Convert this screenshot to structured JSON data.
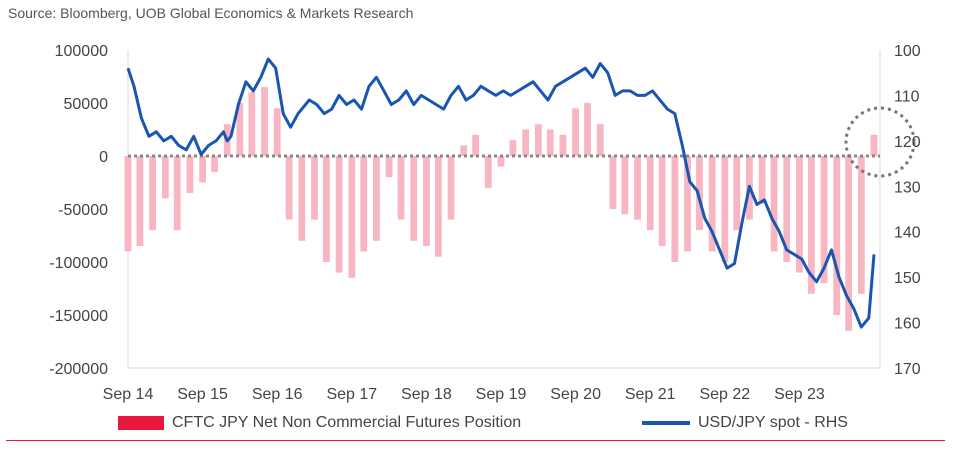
{
  "source": "Source: Bloomberg, UOB Global Economics & Markets Research",
  "colors": {
    "bars": "#f7b6c2",
    "line": "#1a56b0",
    "zero_line": "#888888",
    "legend_bar": "#e8173c",
    "rule": "#e8173c"
  },
  "chart_data": {
    "type": "bar+line",
    "title": "",
    "x_labels": [
      "Sep 14",
      "Sep 15",
      "Sep 16",
      "Sep 17",
      "Sep 18",
      "Sep 19",
      "Sep 20",
      "Sep 21",
      "Sep 22",
      "Sep 23"
    ],
    "y_left": {
      "ticks": [
        100000,
        50000,
        0,
        -50000,
        -100000,
        -150000,
        -200000
      ],
      "range": [
        -200000,
        100000
      ]
    },
    "y_right": {
      "ticks": [
        100,
        110,
        120,
        130,
        140,
        150,
        160,
        170
      ],
      "range": [
        100,
        170
      ],
      "inverted": true
    },
    "series": [
      {
        "name": "CFTC JPY Net Non Commercial Futures Position",
        "type": "bar",
        "axis": "left",
        "x": [
          2014.67,
          2014.83,
          2015.0,
          2015.17,
          2015.33,
          2015.5,
          2015.67,
          2015.83,
          2016.0,
          2016.17,
          2016.33,
          2016.5,
          2016.67,
          2016.83,
          2017.0,
          2017.17,
          2017.33,
          2017.5,
          2017.67,
          2017.83,
          2018.0,
          2018.17,
          2018.33,
          2018.5,
          2018.67,
          2018.83,
          2019.0,
          2019.17,
          2019.33,
          2019.5,
          2019.67,
          2019.83,
          2020.0,
          2020.17,
          2020.33,
          2020.5,
          2020.67,
          2020.83,
          2021.0,
          2021.17,
          2021.33,
          2021.5,
          2021.67,
          2021.83,
          2022.0,
          2022.17,
          2022.33,
          2022.5,
          2022.67,
          2022.83,
          2023.0,
          2023.17,
          2023.33,
          2023.5,
          2023.67,
          2023.83,
          2024.0,
          2024.17,
          2024.33,
          2024.5,
          2024.67
        ],
        "values": [
          -90000,
          -85000,
          -70000,
          -40000,
          -70000,
          -35000,
          -25000,
          -15000,
          30000,
          50000,
          60000,
          65000,
          45000,
          -60000,
          -80000,
          -60000,
          -100000,
          -110000,
          -115000,
          -90000,
          -80000,
          -20000,
          -60000,
          -80000,
          -85000,
          -95000,
          -60000,
          10000,
          20000,
          -30000,
          -10000,
          15000,
          25000,
          30000,
          25000,
          20000,
          45000,
          50000,
          30000,
          -50000,
          -55000,
          -60000,
          -70000,
          -85000,
          -100000,
          -90000,
          -70000,
          -90000,
          -100000,
          -70000,
          -60000,
          -45000,
          -90000,
          -100000,
          -110000,
          -130000,
          -120000,
          -150000,
          -165000,
          -130000,
          20000
        ]
      },
      {
        "name": "USD/JPY spot - RHS",
        "type": "line",
        "axis": "right",
        "x": [
          2014.67,
          2014.75,
          2014.85,
          2014.95,
          2015.05,
          2015.15,
          2015.25,
          2015.35,
          2015.45,
          2015.55,
          2015.65,
          2015.75,
          2015.85,
          2015.95,
          2016.0,
          2016.05,
          2016.15,
          2016.25,
          2016.35,
          2016.45,
          2016.55,
          2016.65,
          2016.75,
          2016.85,
          2016.95,
          2017.0,
          2017.1,
          2017.2,
          2017.3,
          2017.4,
          2017.5,
          2017.6,
          2017.7,
          2017.8,
          2017.9,
          2018.0,
          2018.1,
          2018.2,
          2018.3,
          2018.4,
          2018.5,
          2018.6,
          2018.7,
          2018.8,
          2018.9,
          2019.0,
          2019.1,
          2019.2,
          2019.3,
          2019.4,
          2019.5,
          2019.6,
          2019.7,
          2019.8,
          2019.9,
          2020.0,
          2020.1,
          2020.2,
          2020.3,
          2020.4,
          2020.5,
          2020.6,
          2020.7,
          2020.8,
          2020.9,
          2021.0,
          2021.1,
          2021.2,
          2021.3,
          2021.4,
          2021.5,
          2021.6,
          2021.7,
          2021.8,
          2021.9,
          2022.0,
          2022.1,
          2022.2,
          2022.3,
          2022.4,
          2022.5,
          2022.6,
          2022.7,
          2022.8,
          2022.9,
          2023.0,
          2023.1,
          2023.2,
          2023.3,
          2023.4,
          2023.5,
          2023.6,
          2023.7,
          2023.8,
          2023.9,
          2024.0,
          2024.1,
          2024.2,
          2024.3,
          2024.4,
          2024.5,
          2024.6,
          2024.67
        ],
        "values": [
          104,
          108,
          115,
          119,
          118,
          120,
          119,
          121,
          122,
          119,
          123,
          121,
          120,
          118,
          120,
          119,
          112,
          107,
          109,
          106,
          102,
          104,
          114,
          117,
          114,
          113,
          111,
          112,
          114,
          113,
          110,
          112,
          111,
          113,
          108,
          106,
          109,
          112,
          111,
          109,
          112,
          110,
          111,
          112,
          113,
          110,
          108,
          111,
          110,
          108,
          109,
          110,
          109,
          110,
          109,
          108,
          107,
          109,
          111,
          108,
          107,
          106,
          105,
          104,
          106,
          103,
          105,
          110,
          109,
          109,
          110,
          110,
          109,
          111,
          113,
          114,
          121,
          129,
          131,
          137,
          140,
          144,
          148,
          147,
          138,
          130,
          134,
          133,
          137,
          140,
          144,
          145,
          146,
          149,
          151,
          148,
          144,
          150,
          154,
          157,
          161,
          159,
          145
        ]
      }
    ],
    "legend_placement": "bottom",
    "annotation": "dashed circle around the latest bar near zero line"
  },
  "legend": {
    "bar_label": "CFTC JPY Net Non Commercial Futures Position",
    "line_label": "USD/JPY spot - RHS"
  }
}
